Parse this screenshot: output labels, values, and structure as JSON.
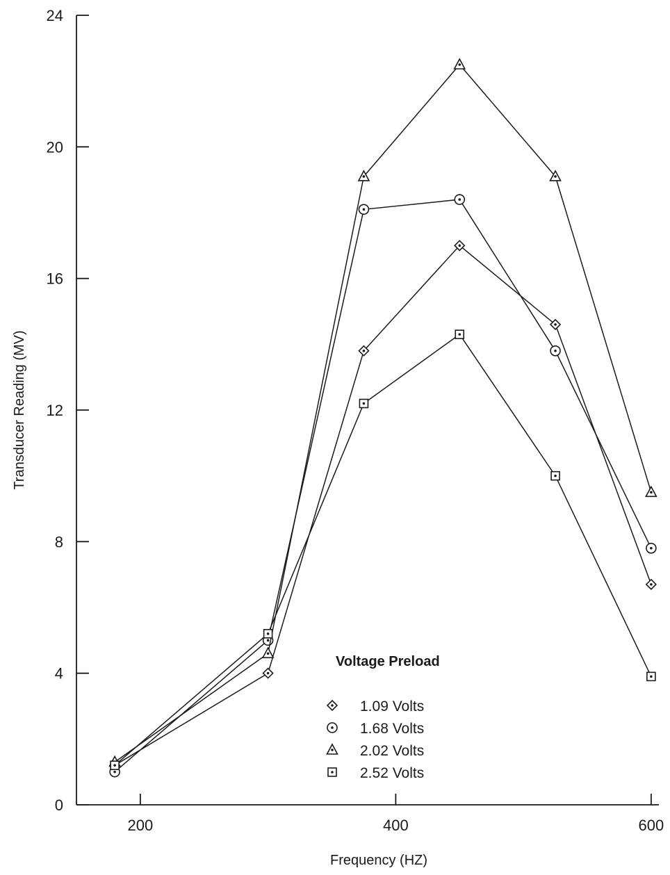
{
  "chart_data": {
    "type": "line",
    "title": "",
    "xlabel": "Frequency (HZ)",
    "ylabel": "Transducer Reading (MV)",
    "xlim": [
      150,
      600
    ],
    "ylim": [
      0,
      24
    ],
    "xticks": [
      200,
      400,
      600
    ],
    "yticks": [
      0,
      4,
      8,
      12,
      16,
      20,
      24
    ],
    "grid": false,
    "legend": {
      "title": "Voltage Preload",
      "placement": "bottom-center"
    },
    "series": [
      {
        "name": "1.09 Volts",
        "marker": "diamond",
        "x": [
          180,
          300,
          375,
          450,
          525,
          600
        ],
        "y": [
          1.2,
          4.0,
          13.8,
          17.0,
          14.6,
          6.7
        ]
      },
      {
        "name": "1.68 Volts",
        "marker": "circle",
        "x": [
          180,
          300,
          375,
          450,
          525,
          600
        ],
        "y": [
          1.0,
          5.0,
          18.1,
          18.4,
          13.8,
          7.8
        ]
      },
      {
        "name": "2.02 Volts",
        "marker": "triangle",
        "x": [
          180,
          300,
          375,
          450,
          525,
          600
        ],
        "y": [
          1.3,
          4.6,
          19.1,
          22.5,
          19.1,
          9.5
        ]
      },
      {
        "name": "2.52 Volts",
        "marker": "square",
        "x": [
          180,
          300,
          375,
          450,
          525,
          600
        ],
        "y": [
          1.2,
          5.2,
          12.2,
          14.3,
          10.0,
          3.9
        ]
      }
    ]
  }
}
